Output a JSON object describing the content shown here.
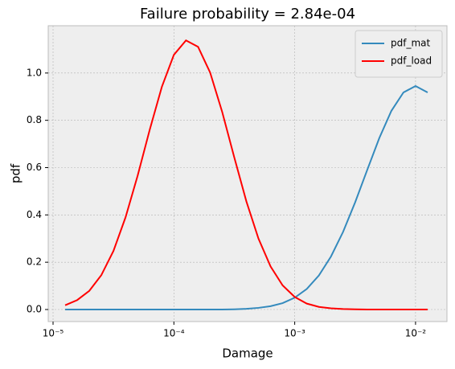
{
  "chart_data": {
    "type": "line",
    "title": "Failure probability = 2.84e-04",
    "x_label": "Damage",
    "y_label": "pdf",
    "x_scale": "log",
    "grid": true,
    "legend": "upper right",
    "x": [
      1.259e-05,
      1.585e-05,
      1.995e-05,
      2.512e-05,
      3.162e-05,
      3.981e-05,
      5.012e-05,
      6.31e-05,
      7.943e-05,
      0.0001,
      0.0001259,
      0.0001585,
      0.0001995,
      0.0002512,
      0.0003162,
      0.0003981,
      0.0005012,
      0.000631,
      0.0007943,
      0.001,
      0.001259,
      0.001585,
      0.001995,
      0.002512,
      0.003162,
      0.003981,
      0.005012,
      0.00631,
      0.007943,
      0.01,
      0.01259
    ],
    "series": [
      {
        "name": "pdf_mat",
        "color": "#348abd",
        "values": [
          0,
          0,
          0,
          0,
          0,
          0,
          0,
          0,
          0,
          0,
          0,
          0,
          0,
          0,
          0.001,
          0.003,
          0.007,
          0.014,
          0.027,
          0.05,
          0.087,
          0.144,
          0.224,
          0.328,
          0.453,
          0.59,
          0.725,
          0.84,
          0.918,
          0.945,
          0.918
        ]
      },
      {
        "name": "pdf_load",
        "color": "#ff0000",
        "values": [
          0.018,
          0.04,
          0.079,
          0.146,
          0.248,
          0.39,
          0.566,
          0.76,
          0.941,
          1.077,
          1.138,
          1.111,
          1.002,
          0.835,
          0.643,
          0.457,
          0.3,
          0.182,
          0.102,
          0.053,
          0.025,
          0.011,
          0.005,
          0.002,
          0.001,
          0,
          0,
          0,
          0,
          0,
          0
        ]
      }
    ],
    "xlim": [
      9.12e-06,
      0.0182
    ],
    "xticks": [
      {
        "value": 1e-05,
        "label": "10⁻⁵"
      },
      {
        "value": 0.0001,
        "label": "10⁻⁴"
      },
      {
        "value": 0.001,
        "label": "10⁻³"
      },
      {
        "value": 0.01,
        "label": "10⁻²"
      }
    ],
    "ylim": [
      -0.051,
      1.2
    ],
    "yticks": [
      {
        "value": 0,
        "label": "0.0"
      },
      0.2,
      0.4,
      0.6,
      0.8,
      {
        "value": 1,
        "label": "1.0"
      }
    ]
  }
}
